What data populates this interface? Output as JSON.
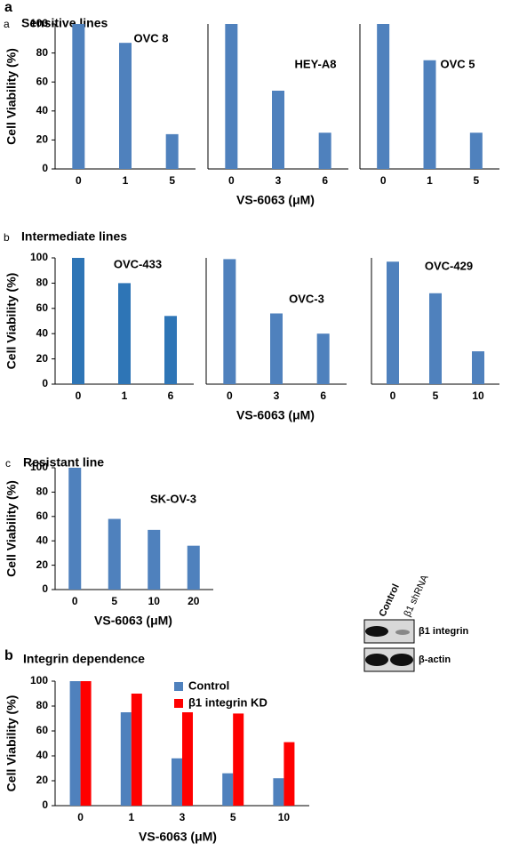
{
  "figure_labels": [
    "a",
    "b"
  ],
  "sections": [
    {
      "label": "a",
      "title": "Sensitive lines"
    },
    {
      "label": "b",
      "title": "Intermediate lines"
    },
    {
      "label": "c",
      "title": "Resistant line"
    },
    {
      "title": "Integrin dependence"
    }
  ],
  "western_blot": {
    "lanes": [
      "Control",
      "β1 shRNA"
    ],
    "bands": [
      "β1 integrin",
      "β-actin"
    ]
  },
  "chart_data": [
    {
      "type": "bar",
      "title": "OVC 8",
      "categories": [
        "0",
        "1",
        "5"
      ],
      "values": [
        100,
        87,
        24
      ],
      "color": "#4f81bd",
      "ylabel": "Cell Viability (%)",
      "ylim": [
        0,
        100
      ],
      "yticks": [
        0,
        20,
        40,
        60,
        80,
        100
      ]
    },
    {
      "type": "bar",
      "title": "HEY-A8",
      "categories": [
        "0",
        "3",
        "6"
      ],
      "values": [
        100,
        54,
        25
      ],
      "color": "#4f81bd",
      "xlabel": "VS-6063 (μM)",
      "ylim": [
        0,
        100
      ]
    },
    {
      "type": "bar",
      "title": "OVC 5",
      "categories": [
        "0",
        "1",
        "5"
      ],
      "values": [
        100,
        75,
        25
      ],
      "color": "#4f81bd",
      "ylim": [
        0,
        100
      ]
    },
    {
      "type": "bar",
      "title": "OVC-433",
      "categories": [
        "0",
        "1",
        "6"
      ],
      "values": [
        100,
        80,
        54
      ],
      "color": "#2e75b6",
      "ylabel": "Cell Viability (%)",
      "ylim": [
        0,
        100
      ],
      "yticks": [
        0,
        20,
        40,
        60,
        80,
        100
      ]
    },
    {
      "type": "bar",
      "title": "OVC-3",
      "categories": [
        "0",
        "3",
        "6"
      ],
      "values": [
        99,
        56,
        40
      ],
      "color": "#4f81bd",
      "xlabel": "VS-6063 (μM)",
      "ylim": [
        0,
        100
      ]
    },
    {
      "type": "bar",
      "title": "OVC-429",
      "categories": [
        "0",
        "5",
        "10"
      ],
      "values": [
        97,
        72,
        26
      ],
      "color": "#4f81bd",
      "ylim": [
        0,
        100
      ]
    },
    {
      "type": "bar",
      "title": "SK-OV-3",
      "categories": [
        "0",
        "5",
        "10",
        "20"
      ],
      "values": [
        100,
        58,
        49,
        36
      ],
      "color": "#4f81bd",
      "ylabel": "Cell Viability (%)",
      "xlabel": "VS-6063 (μM)",
      "ylim": [
        0,
        100
      ],
      "yticks": [
        0,
        20,
        40,
        60,
        80,
        100
      ]
    },
    {
      "type": "grouped-bar",
      "categories": [
        "0",
        "1",
        "3",
        "5",
        "10"
      ],
      "series": [
        {
          "name": "Control",
          "color": "#4f81bd",
          "values": [
            100,
            75,
            38,
            26,
            22
          ]
        },
        {
          "name": "β1 integrin KD",
          "color": "#ff0000",
          "values": [
            100,
            90,
            75,
            74,
            51
          ]
        }
      ],
      "ylabel": "Cell Viability (%)",
      "xlabel": "VS-6063 (μM)",
      "ylim": [
        0,
        100
      ],
      "yticks": [
        0,
        20,
        40,
        60,
        80,
        100
      ],
      "legend": "top-right"
    }
  ]
}
